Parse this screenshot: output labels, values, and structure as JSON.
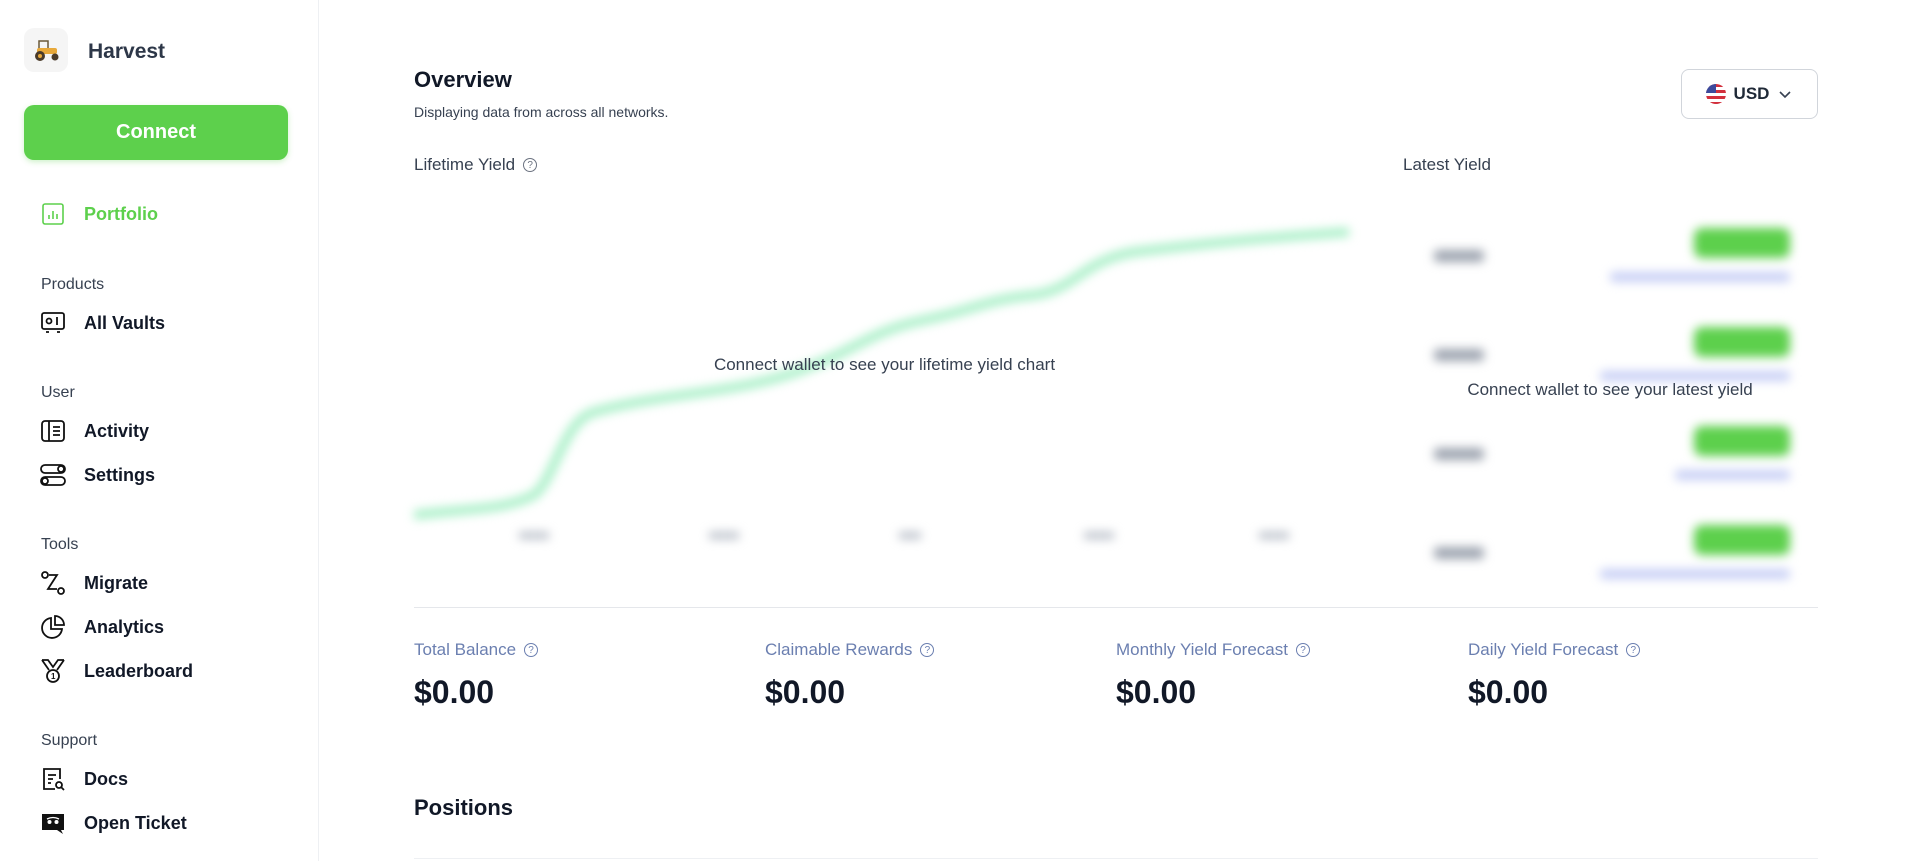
{
  "app": {
    "name": "Harvest",
    "connect_label": "Connect"
  },
  "sidebar": {
    "portfolio": "Portfolio",
    "sections": [
      {
        "title": "Products",
        "items": [
          {
            "label": "All Vaults",
            "icon": "vault-icon"
          }
        ]
      },
      {
        "title": "User",
        "items": [
          {
            "label": "Activity",
            "icon": "activity-icon"
          },
          {
            "label": "Settings",
            "icon": "toggles-icon"
          }
        ]
      },
      {
        "title": "Tools",
        "items": [
          {
            "label": "Migrate",
            "icon": "migrate-icon"
          },
          {
            "label": "Analytics",
            "icon": "pie-chart-icon"
          },
          {
            "label": "Leaderboard",
            "icon": "medal-icon"
          }
        ]
      },
      {
        "title": "Support",
        "items": [
          {
            "label": "Docs",
            "icon": "docs-search-icon"
          },
          {
            "label": "Open Ticket",
            "icon": "discord-icon"
          }
        ]
      }
    ]
  },
  "overview": {
    "title": "Overview",
    "subtitle": "Displaying data from across all networks.",
    "currency": "USD"
  },
  "lifetime": {
    "title": "Lifetime Yield",
    "overlay": "Connect wallet to see your lifetime yield chart"
  },
  "latest": {
    "title": "Latest Yield",
    "overlay": "Connect wallet to see your latest yield"
  },
  "stats": [
    {
      "label": "Total Balance",
      "value": "$0.00"
    },
    {
      "label": "Claimable Rewards",
      "value": "$0.00"
    },
    {
      "label": "Monthly Yield Forecast",
      "value": "$0.00"
    },
    {
      "label": "Daily Yield Forecast",
      "value": "$0.00"
    }
  ],
  "positions": {
    "title": "Positions"
  },
  "colors": {
    "accent": "#5dd04c",
    "chart_line": "#a7efc6",
    "stat_label": "#6b7fb0"
  }
}
